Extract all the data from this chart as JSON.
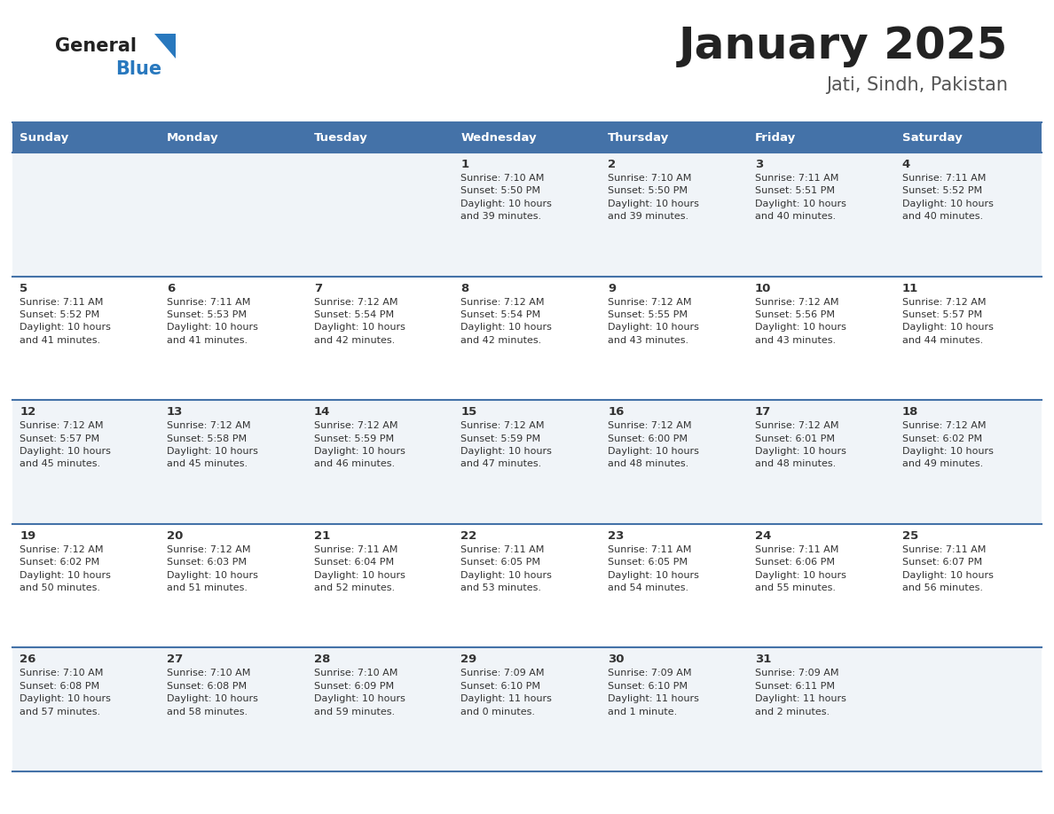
{
  "title": "January 2025",
  "subtitle": "Jati, Sindh, Pakistan",
  "days_of_week": [
    "Sunday",
    "Monday",
    "Tuesday",
    "Wednesday",
    "Thursday",
    "Friday",
    "Saturday"
  ],
  "header_bg": "#4472a8",
  "header_text": "#ffffff",
  "row_bg_odd": "#f0f4f8",
  "row_bg_even": "#ffffff",
  "cell_text_color": "#333333",
  "day_num_color": "#333333",
  "border_color": "#4472a8",
  "calendar": [
    [
      {
        "day": null,
        "info": null
      },
      {
        "day": null,
        "info": null
      },
      {
        "day": null,
        "info": null
      },
      {
        "day": 1,
        "info": "Sunrise: 7:10 AM\nSunset: 5:50 PM\nDaylight: 10 hours\nand 39 minutes."
      },
      {
        "day": 2,
        "info": "Sunrise: 7:10 AM\nSunset: 5:50 PM\nDaylight: 10 hours\nand 39 minutes."
      },
      {
        "day": 3,
        "info": "Sunrise: 7:11 AM\nSunset: 5:51 PM\nDaylight: 10 hours\nand 40 minutes."
      },
      {
        "day": 4,
        "info": "Sunrise: 7:11 AM\nSunset: 5:52 PM\nDaylight: 10 hours\nand 40 minutes."
      }
    ],
    [
      {
        "day": 5,
        "info": "Sunrise: 7:11 AM\nSunset: 5:52 PM\nDaylight: 10 hours\nand 41 minutes."
      },
      {
        "day": 6,
        "info": "Sunrise: 7:11 AM\nSunset: 5:53 PM\nDaylight: 10 hours\nand 41 minutes."
      },
      {
        "day": 7,
        "info": "Sunrise: 7:12 AM\nSunset: 5:54 PM\nDaylight: 10 hours\nand 42 minutes."
      },
      {
        "day": 8,
        "info": "Sunrise: 7:12 AM\nSunset: 5:54 PM\nDaylight: 10 hours\nand 42 minutes."
      },
      {
        "day": 9,
        "info": "Sunrise: 7:12 AM\nSunset: 5:55 PM\nDaylight: 10 hours\nand 43 minutes."
      },
      {
        "day": 10,
        "info": "Sunrise: 7:12 AM\nSunset: 5:56 PM\nDaylight: 10 hours\nand 43 minutes."
      },
      {
        "day": 11,
        "info": "Sunrise: 7:12 AM\nSunset: 5:57 PM\nDaylight: 10 hours\nand 44 minutes."
      }
    ],
    [
      {
        "day": 12,
        "info": "Sunrise: 7:12 AM\nSunset: 5:57 PM\nDaylight: 10 hours\nand 45 minutes."
      },
      {
        "day": 13,
        "info": "Sunrise: 7:12 AM\nSunset: 5:58 PM\nDaylight: 10 hours\nand 45 minutes."
      },
      {
        "day": 14,
        "info": "Sunrise: 7:12 AM\nSunset: 5:59 PM\nDaylight: 10 hours\nand 46 minutes."
      },
      {
        "day": 15,
        "info": "Sunrise: 7:12 AM\nSunset: 5:59 PM\nDaylight: 10 hours\nand 47 minutes."
      },
      {
        "day": 16,
        "info": "Sunrise: 7:12 AM\nSunset: 6:00 PM\nDaylight: 10 hours\nand 48 minutes."
      },
      {
        "day": 17,
        "info": "Sunrise: 7:12 AM\nSunset: 6:01 PM\nDaylight: 10 hours\nand 48 minutes."
      },
      {
        "day": 18,
        "info": "Sunrise: 7:12 AM\nSunset: 6:02 PM\nDaylight: 10 hours\nand 49 minutes."
      }
    ],
    [
      {
        "day": 19,
        "info": "Sunrise: 7:12 AM\nSunset: 6:02 PM\nDaylight: 10 hours\nand 50 minutes."
      },
      {
        "day": 20,
        "info": "Sunrise: 7:12 AM\nSunset: 6:03 PM\nDaylight: 10 hours\nand 51 minutes."
      },
      {
        "day": 21,
        "info": "Sunrise: 7:11 AM\nSunset: 6:04 PM\nDaylight: 10 hours\nand 52 minutes."
      },
      {
        "day": 22,
        "info": "Sunrise: 7:11 AM\nSunset: 6:05 PM\nDaylight: 10 hours\nand 53 minutes."
      },
      {
        "day": 23,
        "info": "Sunrise: 7:11 AM\nSunset: 6:05 PM\nDaylight: 10 hours\nand 54 minutes."
      },
      {
        "day": 24,
        "info": "Sunrise: 7:11 AM\nSunset: 6:06 PM\nDaylight: 10 hours\nand 55 minutes."
      },
      {
        "day": 25,
        "info": "Sunrise: 7:11 AM\nSunset: 6:07 PM\nDaylight: 10 hours\nand 56 minutes."
      }
    ],
    [
      {
        "day": 26,
        "info": "Sunrise: 7:10 AM\nSunset: 6:08 PM\nDaylight: 10 hours\nand 57 minutes."
      },
      {
        "day": 27,
        "info": "Sunrise: 7:10 AM\nSunset: 6:08 PM\nDaylight: 10 hours\nand 58 minutes."
      },
      {
        "day": 28,
        "info": "Sunrise: 7:10 AM\nSunset: 6:09 PM\nDaylight: 10 hours\nand 59 minutes."
      },
      {
        "day": 29,
        "info": "Sunrise: 7:09 AM\nSunset: 6:10 PM\nDaylight: 11 hours\nand 0 minutes."
      },
      {
        "day": 30,
        "info": "Sunrise: 7:09 AM\nSunset: 6:10 PM\nDaylight: 11 hours\nand 1 minute."
      },
      {
        "day": 31,
        "info": "Sunrise: 7:09 AM\nSunset: 6:11 PM\nDaylight: 11 hours\nand 2 minutes."
      },
      {
        "day": null,
        "info": null
      }
    ]
  ],
  "logo_general_color": "#222222",
  "logo_blue_color": "#2878be",
  "logo_triangle_color": "#2878be",
  "title_color": "#222222",
  "subtitle_color": "#555555"
}
